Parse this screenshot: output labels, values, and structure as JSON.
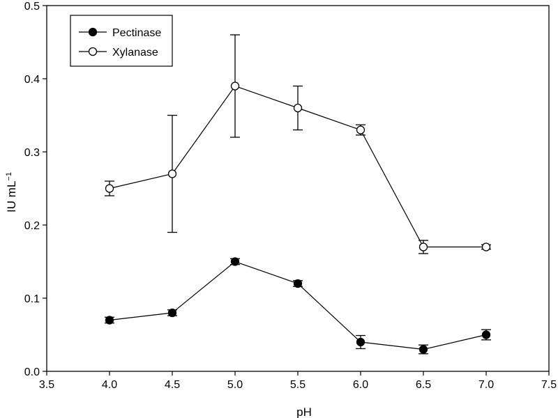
{
  "chart_data": {
    "type": "line",
    "xlabel": "pH",
    "ylabel": "IU mL",
    "ylabel_superscript": "−1",
    "xlim": [
      3.5,
      7.5
    ],
    "ylim": [
      0.0,
      0.5
    ],
    "xticks": [
      "3.5",
      "4.0",
      "4.5",
      "5.0",
      "5.5",
      "6.0",
      "6.5",
      "7.0",
      "7.5"
    ],
    "yticks": [
      "0.0",
      "0.1",
      "0.2",
      "0.3",
      "0.4",
      "0.5"
    ],
    "grid": false,
    "legend": "top-left",
    "x": [
      4.0,
      4.5,
      5.0,
      5.5,
      6.0,
      6.5,
      7.0
    ],
    "series": [
      {
        "name": "Pectinase",
        "marker": "filled-circle",
        "values": [
          0.07,
          0.08,
          0.15,
          0.12,
          0.04,
          0.03,
          0.05
        ],
        "errors": [
          0.004,
          0.004,
          0.004,
          0.004,
          0.009,
          0.006,
          0.007
        ]
      },
      {
        "name": "Xylanase",
        "marker": "open-circle",
        "values": [
          0.25,
          0.27,
          0.39,
          0.36,
          0.33,
          0.17,
          0.17
        ],
        "errors": [
          0.01,
          0.08,
          0.07,
          0.03,
          0.007,
          0.009,
          0.003
        ]
      }
    ]
  }
}
